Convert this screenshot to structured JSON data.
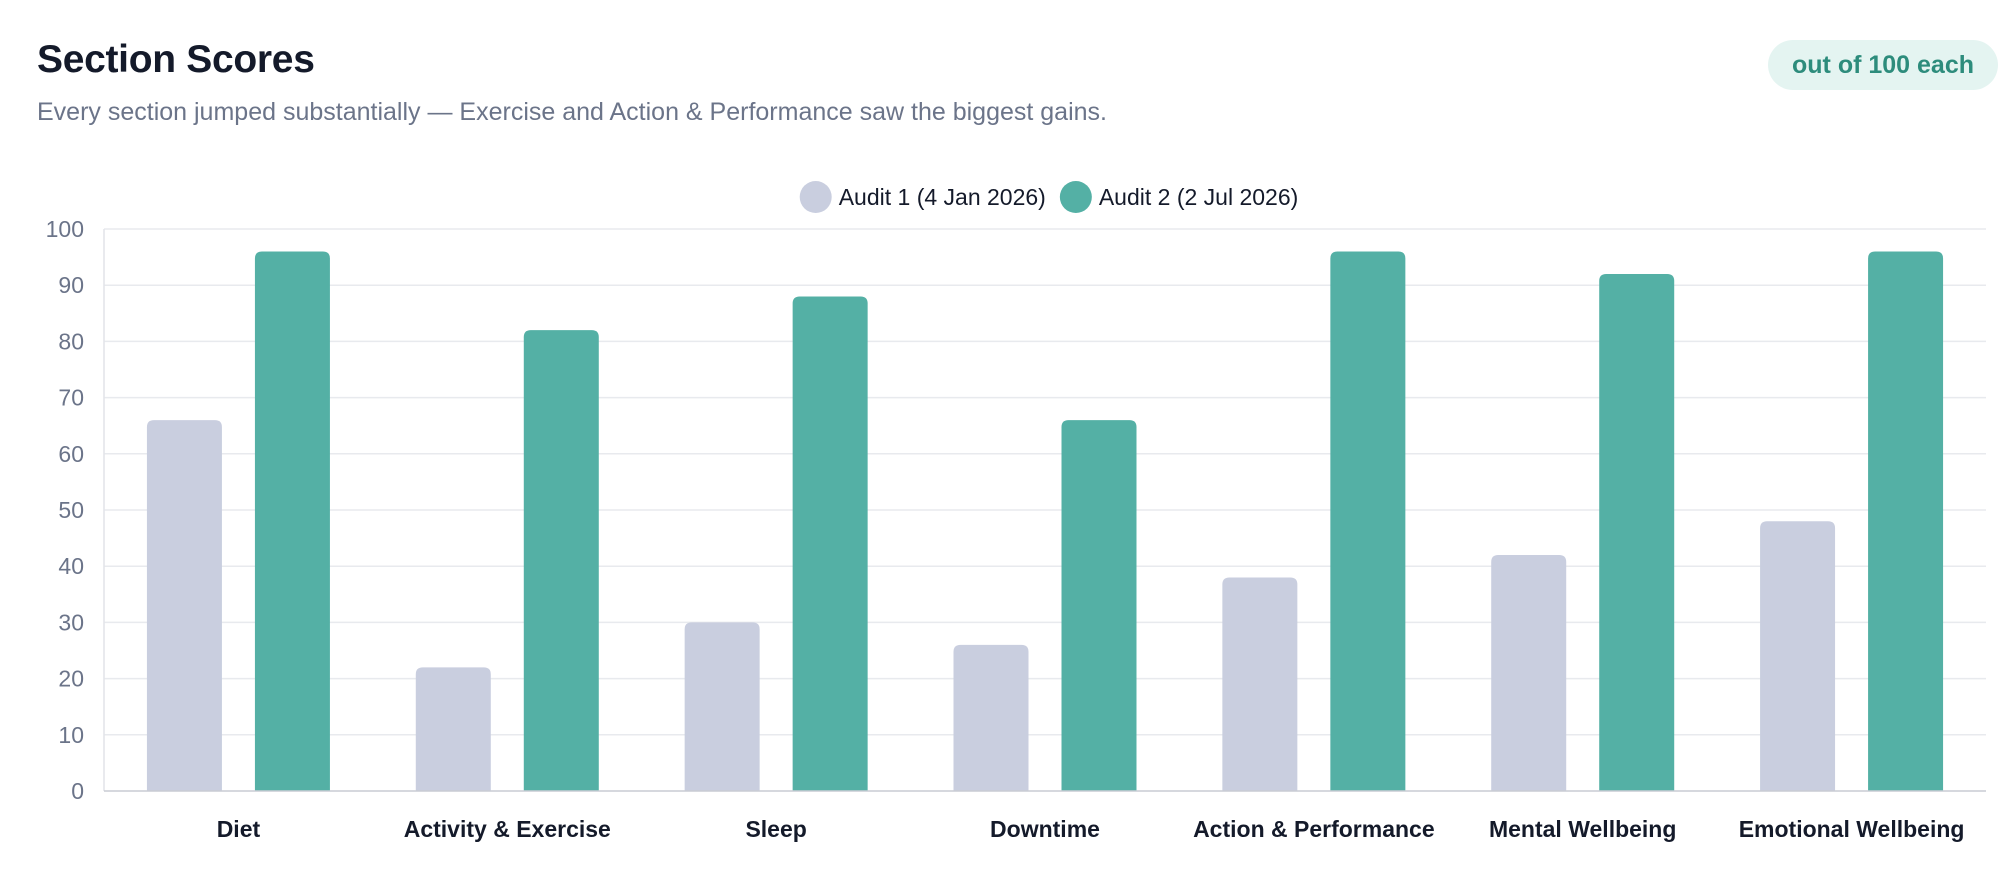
{
  "header": {
    "title": "Section Scores",
    "subtitle": "Every section jumped substantially — Exercise and Action & Performance saw the biggest gains.",
    "badge": "out of 100 each"
  },
  "colors": {
    "audit1": "#c9cedf",
    "audit2": "#54b0a5",
    "grid": "#e8eaee",
    "axis_text": "#6b7489",
    "category_text": "#141a2a",
    "legend_text": "#141a2a"
  },
  "chart_data": {
    "type": "bar",
    "title": "",
    "xlabel": "",
    "ylabel": "",
    "ylim": [
      0,
      100
    ],
    "yticks": [
      0,
      10,
      20,
      30,
      40,
      50,
      60,
      70,
      80,
      90,
      100
    ],
    "grid": true,
    "legend_position": "top-center",
    "categories": [
      "Diet",
      "Activity & Exercise",
      "Sleep",
      "Downtime",
      "Action & Performance",
      "Mental Wellbeing",
      "Emotional Wellbeing"
    ],
    "series": [
      {
        "name": "Audit 1 (4 Jan 2026)",
        "color_key": "audit1",
        "values": [
          66,
          22,
          30,
          26,
          38,
          42,
          48
        ]
      },
      {
        "name": "Audit 2 (2 Jul 2026)",
        "color_key": "audit2",
        "values": [
          96,
          82,
          88,
          66,
          96,
          92,
          96
        ]
      }
    ]
  }
}
